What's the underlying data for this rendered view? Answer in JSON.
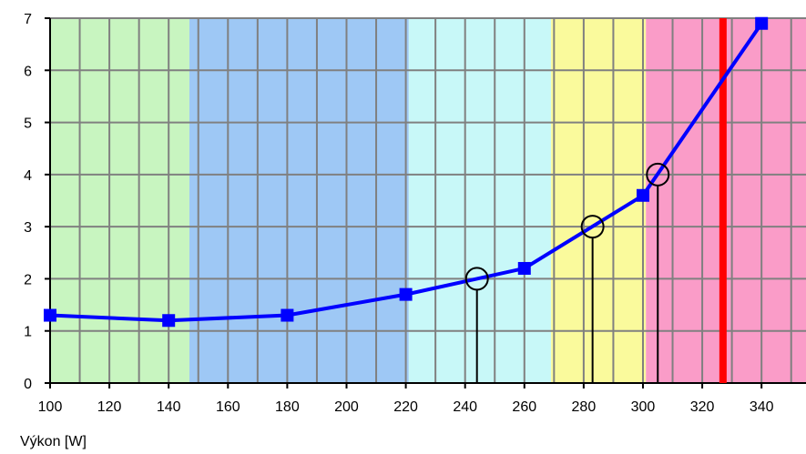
{
  "chart_data": {
    "type": "line",
    "title": "",
    "xlabel": "Výkon [W]",
    "ylabel": "",
    "xlim": [
      100,
      355
    ],
    "ylim": [
      0,
      7
    ],
    "grid": true,
    "x_ticks": [
      100,
      120,
      140,
      160,
      180,
      200,
      220,
      240,
      260,
      280,
      300,
      320,
      340
    ],
    "y_ticks": [
      0,
      1,
      2,
      3,
      4,
      5,
      6,
      7
    ],
    "zones": [
      {
        "x_start": 100,
        "x_end": 147,
        "color": "#c8f5c0"
      },
      {
        "x_start": 147,
        "x_end": 221,
        "color": "#9ec8f5"
      },
      {
        "x_start": 221,
        "x_end": 269,
        "color": "#c8f8f8"
      },
      {
        "x_start": 269,
        "x_end": 301,
        "color": "#fafa9c"
      },
      {
        "x_start": 301,
        "x_end": 355,
        "color": "#fa9cc8"
      }
    ],
    "series": [
      {
        "color": "#0000ff",
        "marker": "square",
        "x": [
          100,
          140,
          180,
          220,
          260,
          300,
          340
        ],
        "y": [
          1.3,
          1.2,
          1.3,
          1.7,
          2.2,
          3.6,
          6.9
        ]
      }
    ],
    "threshold_markers": [
      {
        "x": 244,
        "y": 2
      },
      {
        "x": 283,
        "y": 3
      },
      {
        "x": 305,
        "y": 4
      }
    ],
    "vertical_line": {
      "x": 327,
      "color": "#ff0000"
    }
  }
}
